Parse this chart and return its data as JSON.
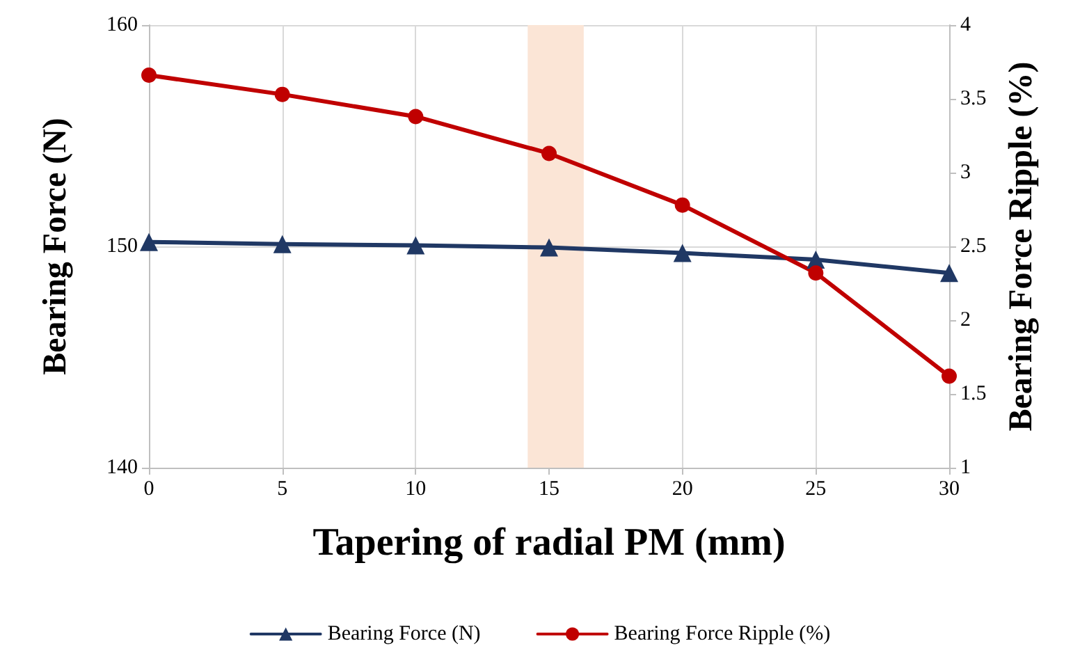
{
  "chart_data": {
    "type": "line",
    "xlabel": "Tapering of radial PM (mm)",
    "ylabel": "Bearing Force (N)",
    "y2label": "Bearing Force Ripple (%)",
    "x": [
      0,
      5,
      10,
      15,
      20,
      25,
      30
    ],
    "series": [
      {
        "name": "Bearing Force (N)",
        "color": "#203864",
        "marker": "triangle",
        "values": [
          150.2,
          150.1,
          150.05,
          149.95,
          149.7,
          149.4,
          148.8
        ]
      },
      {
        "name": "Bearing Force Ripple (%)",
        "color": "#c00000",
        "marker": "circle",
        "axis": "y2",
        "values": [
          3.66,
          3.53,
          3.38,
          3.13,
          2.78,
          2.32,
          1.62
        ]
      }
    ],
    "xlim": [
      0,
      30
    ],
    "xticks": [
      0,
      5,
      10,
      15,
      20,
      25,
      30
    ],
    "ylim": [
      140,
      160
    ],
    "yticks": [
      140,
      150,
      160
    ],
    "y2lim": [
      1,
      4
    ],
    "y2ticks": [
      1,
      1.5,
      2,
      2.5,
      3,
      3.5,
      4
    ],
    "bands": [
      {
        "axis": "x",
        "from": 14.2,
        "to": 16.3,
        "color": "#fbe5d6"
      }
    ],
    "grid": true,
    "legend": "bottom",
    "line_style": "solid"
  }
}
